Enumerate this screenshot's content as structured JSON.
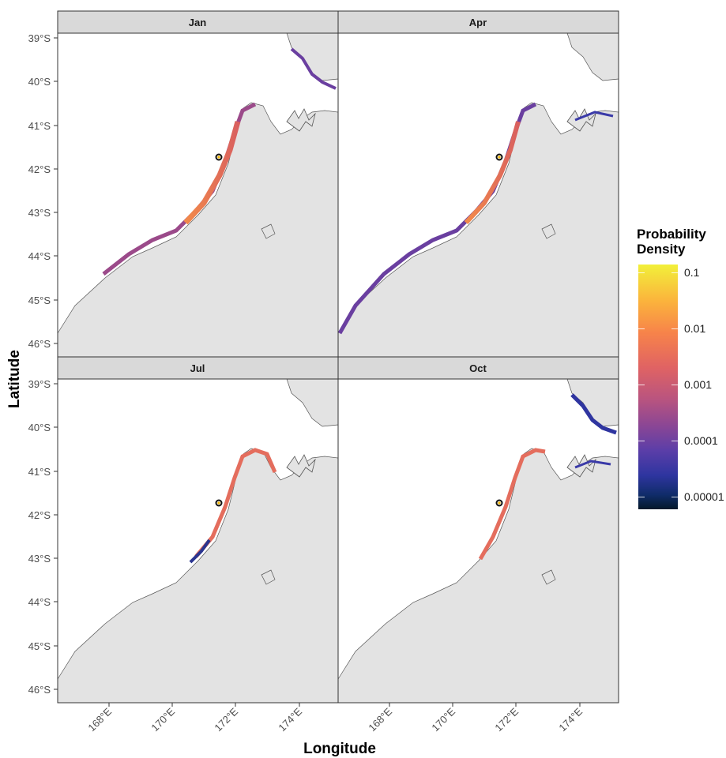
{
  "axes": {
    "xlabel": "Longitude",
    "ylabel": "Latitude",
    "lat_ticks": [
      "39°S",
      "40°S",
      "41°S",
      "42°S",
      "43°S",
      "44°S",
      "45°S",
      "46°S"
    ],
    "lon_ticks": [
      "168°E",
      "170°E",
      "172°E",
      "174°E"
    ]
  },
  "panels": [
    {
      "label": "Jan"
    },
    {
      "label": "Apr"
    },
    {
      "label": "Jul"
    },
    {
      "label": "Oct"
    }
  ],
  "legend": {
    "title_line1": "Probability",
    "title_line2": "Density",
    "labels": [
      "0.1",
      "0.01",
      "0.001",
      "0.0001",
      "0.00001"
    ]
  },
  "colors": {
    "land": "#e3e3e3",
    "coast": "#555555",
    "strip": "#d9d9d9",
    "release_marker": "#f5b800"
  }
}
